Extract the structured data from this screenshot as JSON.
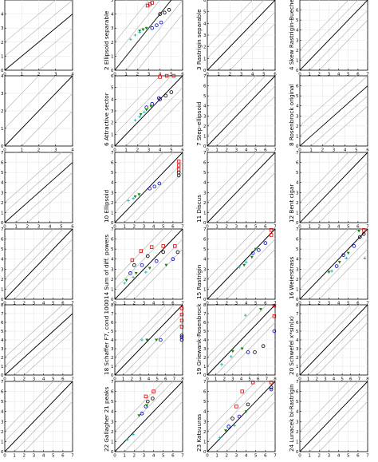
{
  "panels": [
    {
      "n": 1,
      "label": "",
      "xmax": 4,
      "ymax": 5,
      "xticks": [
        "0",
        "1",
        "2",
        "3",
        "4"
      ],
      "yticks": [
        "0",
        "1",
        "2",
        "3",
        "4"
      ]
    },
    {
      "n": 2,
      "label": "2 Ellipsoid separable",
      "xmax": 6,
      "ymax": 5,
      "xticks": [
        "0",
        "1",
        "2",
        "3",
        "4",
        "5",
        "6"
      ],
      "yticks": [
        "0",
        "1",
        "2",
        "3",
        "4",
        "5"
      ]
    },
    {
      "n": 3,
      "label": "3 Rastrigin separable",
      "xmax": 6,
      "ymax": 6,
      "xticks": [
        "0",
        "1",
        "2",
        "3",
        "4",
        "5",
        "6"
      ],
      "yticks": [
        "0",
        "1",
        "2",
        "3",
        "4",
        "5",
        "6"
      ]
    },
    {
      "n": 4,
      "label": "4 Skew Rastrigin-Bueche",
      "xmax": 7,
      "ymax": 7,
      "xticks": [
        "0",
        "1",
        "2",
        "3",
        "4",
        "5",
        "6",
        "7"
      ],
      "yticks": [
        "0",
        "1",
        "2",
        "3",
        "4",
        "5",
        "6"
      ]
    },
    {
      "n": 5,
      "label": "",
      "xmax": 4,
      "ymax": 4,
      "xticks": [
        "0",
        "1",
        "2",
        "3",
        "4"
      ],
      "yticks": [
        "0",
        "1",
        "2",
        "3",
        "4"
      ]
    },
    {
      "n": 6,
      "label": "6 Attractive sector",
      "xmax": 6,
      "ymax": 6,
      "xticks": [
        "0",
        "1",
        "2",
        "3",
        "4",
        "5",
        "6"
      ],
      "yticks": [
        "0",
        "1",
        "2",
        "3",
        "4",
        "5",
        "6"
      ]
    },
    {
      "n": 7,
      "label": "7 Step-ellipsoid",
      "xmax": 7,
      "ymax": 7,
      "xticks": [
        "0",
        "1",
        "2",
        "3",
        "4",
        "5",
        "6",
        "7"
      ],
      "yticks": [
        "0",
        "1",
        "2",
        "3",
        "4",
        "5",
        "6",
        "7"
      ]
    },
    {
      "n": 8,
      "label": "8 Rosenbrock original",
      "xmax": 6,
      "ymax": 7,
      "xticks": [
        "0",
        "1",
        "2",
        "3",
        "4",
        "5",
        "6"
      ],
      "yticks": [
        "0",
        "1",
        "2",
        "3",
        "4",
        "5",
        "6"
      ]
    },
    {
      "n": 9,
      "label": "",
      "xmax": 6,
      "ymax": 7,
      "xticks": [
        "0",
        "1",
        "2",
        "3",
        "4",
        "5",
        "6"
      ],
      "yticks": [
        "0",
        "1",
        "2",
        "3",
        "4",
        "5",
        "6",
        "7"
      ]
    },
    {
      "n": 10,
      "label": "10 Ellipsoid",
      "xmax": 7,
      "ymax": 7,
      "xticks": [
        "0",
        "1",
        "2",
        "3",
        "4",
        "5",
        "6",
        "7"
      ],
      "yticks": [
        "0",
        "1",
        "2",
        "3",
        "4",
        "5",
        "6",
        "7"
      ]
    },
    {
      "n": 11,
      "label": "11 Discus",
      "xmax": 7,
      "ymax": 7,
      "xticks": [
        "0",
        "1",
        "2",
        "3",
        "4",
        "5",
        "6",
        "7"
      ],
      "yticks": [
        "0",
        "1",
        "2",
        "3",
        "4",
        "5",
        "6",
        "7"
      ]
    },
    {
      "n": 12,
      "label": "12 Bent cigar",
      "xmax": 7,
      "ymax": 7,
      "xticks": [
        "0",
        "1",
        "2",
        "3",
        "4",
        "5",
        "6",
        "7"
      ],
      "yticks": [
        "0",
        "1",
        "2",
        "3",
        "4",
        "5",
        "6",
        "7"
      ]
    },
    {
      "n": 13,
      "label": "",
      "xmax": 7,
      "ymax": 7,
      "xticks": [
        "0",
        "1",
        "2",
        "3",
        "4",
        "5",
        "6",
        "7"
      ],
      "yticks": [
        "0",
        "1",
        "2",
        "3",
        "4",
        "5",
        "6",
        "7"
      ]
    },
    {
      "n": 14,
      "label": "14 Sum of diff. powers",
      "xmax": 7,
      "ymax": 7,
      "xticks": [
        "0",
        "1",
        "2",
        "3",
        "4",
        "5",
        "6",
        "7"
      ],
      "yticks": [
        "0",
        "1",
        "2",
        "3",
        "4",
        "5",
        "6",
        "7"
      ]
    },
    {
      "n": 15,
      "label": "15 Rastrigin",
      "xmax": 7,
      "ymax": 7,
      "xticks": [
        "0",
        "1",
        "2",
        "3",
        "4",
        "5",
        "6",
        "7"
      ],
      "yticks": [
        "0",
        "1",
        "2",
        "3",
        "4",
        "5",
        "6",
        "7"
      ]
    },
    {
      "n": 16,
      "label": "16 Weierstrass",
      "xmax": 7,
      "ymax": 7,
      "xticks": [
        "0",
        "1",
        "2",
        "3",
        "4",
        "5",
        "6",
        "7"
      ],
      "yticks": [
        "0",
        "1",
        "2",
        "3",
        "4",
        "5",
        "6",
        "7"
      ]
    },
    {
      "n": 17,
      "label": "",
      "xmax": 7,
      "ymax": 8,
      "xticks": [
        "0",
        "1",
        "2",
        "3",
        "4",
        "5",
        "6",
        "7"
      ],
      "yticks": [
        "0",
        "1",
        "2",
        "3",
        "4",
        "5",
        "6",
        "7",
        "8"
      ]
    },
    {
      "n": 18,
      "label": "18 Schaffer F7, cond 1000",
      "xmax": 8,
      "ymax": 8,
      "xticks": [
        "0",
        "1",
        "2",
        "3",
        "4",
        "5",
        "6",
        "7",
        "8"
      ],
      "yticks": [
        "0",
        "1",
        "2",
        "3",
        "4",
        "5",
        "6",
        "7",
        "8"
      ]
    },
    {
      "n": 19,
      "label": "19 Griewank-Rosenbrock",
      "xmax": 8,
      "ymax": 8,
      "xticks": [
        "0",
        "1",
        "2",
        "3",
        "4",
        "5",
        "6",
        "7",
        "8"
      ],
      "yticks": [
        "0",
        "1",
        "2",
        "3",
        "4",
        "5",
        "6",
        "7",
        "8"
      ]
    },
    {
      "n": 20,
      "label": "20 Schwefel x*sin(x)",
      "xmax": 8,
      "ymax": 8,
      "xticks": [
        "0",
        "1",
        "2",
        "3",
        "4",
        "5",
        "6",
        "7",
        "8"
      ],
      "yticks": [
        "0",
        "1",
        "2",
        "3",
        "4",
        "5",
        "6",
        "7",
        "8"
      ]
    },
    {
      "n": 21,
      "label": "",
      "xmax": 7,
      "ymax": 7,
      "xticks": [
        "0",
        "1",
        "2",
        "3",
        "4",
        "5",
        "6",
        "7"
      ],
      "yticks": [
        "0",
        "1",
        "2",
        "3",
        "4",
        "5",
        "6",
        "7"
      ]
    },
    {
      "n": 22,
      "label": "22 Gallagher 21 peaks",
      "xmax": 7,
      "ymax": 7,
      "xticks": [
        "0",
        "1",
        "2",
        "3",
        "4",
        "5",
        "6",
        "7"
      ],
      "yticks": [
        "0",
        "1",
        "2",
        "3",
        "4",
        "5",
        "6",
        "7"
      ]
    },
    {
      "n": 23,
      "label": "23 Katsuuras",
      "xmax": 7,
      "ymax": 7,
      "xticks": [
        "0",
        "1",
        "2",
        "3",
        "4",
        "5",
        "6",
        "7"
      ],
      "yticks": [
        "0",
        "1",
        "2",
        "3",
        "4",
        "5",
        "6",
        "7"
      ]
    },
    {
      "n": 24,
      "label": "24 Lunacek bi-Rastrigin",
      "xmax": 7,
      "ymax": 7,
      "xticks": [
        "0",
        "1",
        "2",
        "3",
        "4",
        "5",
        "6",
        "7"
      ],
      "yticks": [
        "0",
        "1",
        "2",
        "3",
        "4",
        "5",
        "6",
        "7"
      ]
    }
  ],
  "colors": {
    "red": "#e00000",
    "black": "#000000",
    "blue": "#0000cc",
    "green": "#118811",
    "cyan": "#00b3b3",
    "diagonal": "#000000",
    "guide": "#b0b0b0"
  },
  "chart_data": {
    "type": "scatter",
    "layout": "6 rows x 4 columns",
    "series_colors": [
      "red",
      "black",
      "blue",
      "green",
      "cyan"
    ],
    "scale": "log10",
    "diagonal_guides": true,
    "panels": [
      {
        "n": 2,
        "points": {
          "red": [
            [
              2.9,
              4.6
            ],
            [
              3.1,
              4.7
            ],
            [
              3.3,
              4.8
            ]
          ],
          "black": [
            [
              4.0,
              4.0
            ],
            [
              4.4,
              4.1
            ],
            [
              4.8,
              4.3
            ]
          ],
          "blue": [
            [
              3.3,
              3.0
            ],
            [
              3.7,
              3.2
            ],
            [
              4.1,
              3.4
            ]
          ],
          "green": [
            [
              2.2,
              2.8
            ],
            [
              2.5,
              2.9
            ],
            [
              2.8,
              3.0
            ]
          ],
          "cyan": [
            [
              1.4,
              2.2
            ],
            [
              1.8,
              2.5
            ],
            [
              2.2,
              2.7
            ]
          ]
        }
      },
      {
        "n": 6,
        "points": {
          "red": [
            [
              4.0,
              5.9
            ],
            [
              4.6,
              6.0
            ],
            [
              5.2,
              6.0
            ]
          ],
          "black": [
            [
              4.0,
              4.0
            ],
            [
              4.5,
              4.3
            ],
            [
              5.0,
              4.6
            ]
          ],
          "blue": [
            [
              2.8,
              3.3
            ],
            [
              3.3,
              3.6
            ],
            [
              3.9,
              4.1
            ]
          ],
          "green": [
            [
              2.3,
              2.7
            ],
            [
              2.8,
              3.1
            ],
            [
              3.2,
              3.4
            ]
          ],
          "cyan": [
            [
              1.8,
              2.2
            ],
            [
              2.2,
              2.5
            ],
            [
              2.6,
              2.9
            ]
          ]
        }
      },
      {
        "n": 10,
        "points": {
          "red": [
            [
              6.6,
              5.7
            ],
            [
              6.6,
              6.1
            ],
            [
              6.6,
              5.3
            ]
          ],
          "black": [
            [
              6.6,
              4.7
            ],
            [
              6.6,
              5.0
            ]
          ],
          "blue": [
            [
              3.6,
              3.4
            ],
            [
              4.1,
              3.6
            ],
            [
              4.6,
              3.9
            ]
          ],
          "green": [
            [
              2.1,
              2.6
            ],
            [
              2.5,
              2.8
            ]
          ],
          "cyan": [
            [
              1.4,
              2.2
            ],
            [
              1.9,
              2.4
            ]
          ]
        }
      },
      {
        "n": 14,
        "points": {
          "red": [
            [
              1.8,
              3.9
            ],
            [
              2.7,
              4.8
            ],
            [
              3.8,
              5.2
            ],
            [
              5.0,
              5.3
            ],
            [
              6.2,
              5.3
            ]
          ],
          "black": [
            [
              2.0,
              3.4
            ],
            [
              3.4,
              4.3
            ],
            [
              5.0,
              4.7
            ],
            [
              6.5,
              4.7
            ]
          ],
          "blue": [
            [
              1.6,
              2.6
            ],
            [
              2.8,
              3.4
            ],
            [
              4.3,
              3.8
            ],
            [
              6.0,
              4.0
            ]
          ],
          "green": [
            [
              1.2,
              1.9
            ],
            [
              2.2,
              2.6
            ],
            [
              3.6,
              3.1
            ],
            [
              5.3,
              3.4
            ]
          ],
          "cyan": [
            [
              1.0,
              1.6
            ],
            [
              1.9,
              2.2
            ],
            [
              3.2,
              2.7
            ]
          ]
        }
      },
      {
        "n": 15,
        "points": {
          "red": [
            [
              6.6,
              6.9
            ],
            [
              6.6,
              6.4
            ]
          ],
          "blue": [
            [
              4.7,
              4.6
            ],
            [
              5.3,
              4.9
            ],
            [
              6.0,
              5.6
            ]
          ],
          "green": [
            [
              3.8,
              3.4
            ],
            [
              4.6,
              4.2
            ],
            [
              5.0,
              5.0
            ]
          ],
          "cyan": [
            [
              3.3,
              3.2
            ],
            [
              4.0,
              3.7
            ]
          ]
        }
      },
      {
        "n": 16,
        "points": {
          "red": [
            [
              6.6,
              6.9
            ]
          ],
          "black": [
            [
              6.2,
              6.2
            ],
            [
              6.6,
              6.5
            ]
          ],
          "blue": [
            [
              3.8,
              3.3
            ],
            [
              4.5,
              4.4
            ],
            [
              5.6,
              5.3
            ]
          ],
          "green": [
            [
              3.0,
              2.7
            ],
            [
              4.1,
              3.7
            ],
            [
              5.0,
              4.6
            ],
            [
              6.1,
              6.8
            ]
          ],
          "cyan": [
            [
              3.3,
              2.8
            ],
            [
              4.8,
              4.1
            ],
            [
              6.7,
              4.1
            ]
          ]
        }
      },
      {
        "n": 18,
        "points": {
          "red": [
            [
              7.9,
              7.6
            ],
            [
              7.9,
              6.9
            ],
            [
              7.9,
              6.2
            ],
            [
              7.9,
              5.5
            ]
          ],
          "black": [
            [
              7.9,
              4.5
            ],
            [
              7.9,
              4.0
            ]
          ],
          "blue": [
            [
              5.4,
              4.0
            ],
            [
              7.9,
              4.3
            ]
          ],
          "green": [
            [
              3.8,
              4.0
            ],
            [
              4.9,
              4.0
            ]
          ],
          "cyan": [
            [
              3.2,
              4.0
            ]
          ]
        }
      },
      {
        "n": 19,
        "points": {
          "red": [
            [
              7.9,
              7.9
            ],
            [
              7.9,
              6.7
            ]
          ],
          "black": [
            [
              5.6,
              2.6
            ],
            [
              6.6,
              3.3
            ]
          ],
          "blue": [
            [
              4.8,
              2.6
            ],
            [
              7.9,
              5.0
            ]
          ],
          "green": [
            [
              3.0,
              2.7
            ],
            [
              4.1,
              3.0
            ],
            [
              6.3,
              7.5
            ]
          ],
          "cyan": [
            [
              1.7,
              1.2
            ],
            [
              2.8,
              2.1
            ],
            [
              4.5,
              6.8
            ]
          ]
        }
      },
      {
        "n": 22,
        "points": {
          "red": [
            [
              3.2,
              5.5
            ],
            [
              4.0,
              6.0
            ]
          ],
          "black": [
            [
              3.4,
              5.0
            ],
            [
              3.9,
              5.3
            ]
          ],
          "blue": [
            [
              2.8,
              3.8
            ],
            [
              3.2,
              4.5
            ]
          ],
          "green": [
            [
              2.5,
              3.6
            ],
            [
              3.3,
              4.6
            ]
          ],
          "cyan": [
            [
              1.3,
              1.2
            ],
            [
              1.9,
              1.7
            ]
          ]
        }
      },
      {
        "n": 23,
        "points": {
          "red": [
            [
              3.0,
              4.5
            ],
            [
              3.6,
              6.0
            ],
            [
              4.7,
              6.9
            ],
            [
              6.6,
              6.9
            ]
          ],
          "black": [
            [
              2.6,
              3.3
            ],
            [
              4.2,
              4.7
            ],
            [
              6.6,
              6.4
            ]
          ],
          "blue": [
            [
              2.2,
              2.5
            ],
            [
              3.3,
              3.5
            ],
            [
              6.6,
              6.2
            ]
          ],
          "green": [
            [
              1.9,
              2.1
            ],
            [
              4.0,
              4.0
            ]
          ],
          "cyan": [
            [
              1.3,
              1.4
            ],
            [
              2.8,
              2.6
            ]
          ]
        }
      }
    ]
  }
}
